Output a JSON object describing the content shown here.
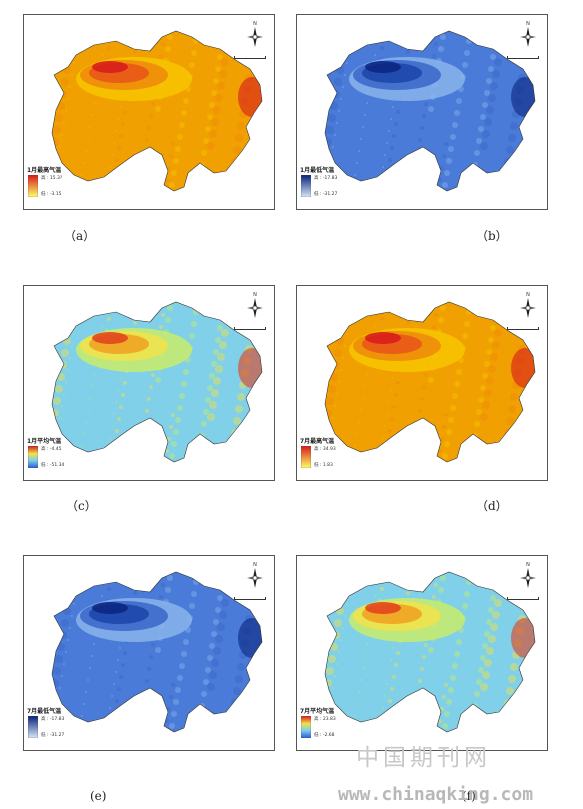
{
  "panels": [
    {
      "id": "a",
      "caption": "（a）",
      "legend_title": "1月最高气温",
      "legend_high": "高 : 15.3?",
      "legend_low": "低 : -3.15",
      "palette": "hot",
      "ramp_top": "#d7191c",
      "ramp_bottom": "#ffff66"
    },
    {
      "id": "b",
      "caption": "（b）",
      "legend_title": "1月最低气温",
      "legend_high": "高 : -17.83",
      "legend_low": "低 : -31.27",
      "palette": "cold",
      "ramp_top": "#08207a",
      "ramp_bottom": "#d6e6f8"
    },
    {
      "id": "c",
      "caption": "（c）",
      "legend_title": "1月平均气温",
      "legend_high": "高 : -4.45",
      "legend_low": "低 : -51.34",
      "palette": "rainbow",
      "ramp_top": "#d7191c",
      "ramp_bottom": "#2b5bd7"
    },
    {
      "id": "d",
      "caption": "（d）",
      "legend_title": "7月最高气温",
      "legend_high": "高 : 34.93",
      "legend_low": "低 : 1.83",
      "palette": "hot",
      "ramp_top": "#d7191c",
      "ramp_bottom": "#ffff66"
    },
    {
      "id": "e",
      "caption": "(e)",
      "legend_title": "7月最低气温",
      "legend_high": "高 : -17.83",
      "legend_low": "低 : -31.27",
      "palette": "cold",
      "ramp_top": "#08207a",
      "ramp_bottom": "#d6e6f8"
    },
    {
      "id": "f",
      "caption": "(f)",
      "legend_title": "7月平均气温",
      "legend_high": "高 : 23.83",
      "legend_low": "低 : -2.68",
      "palette": "rainbow",
      "ramp_top": "#d7191c",
      "ramp_bottom": "#2b5bd7"
    }
  ],
  "icons": {
    "north_arrow": "compass-north-icon"
  },
  "watermark": {
    "cn": "中国期刊网",
    "url": "www.chinaqking.com"
  }
}
